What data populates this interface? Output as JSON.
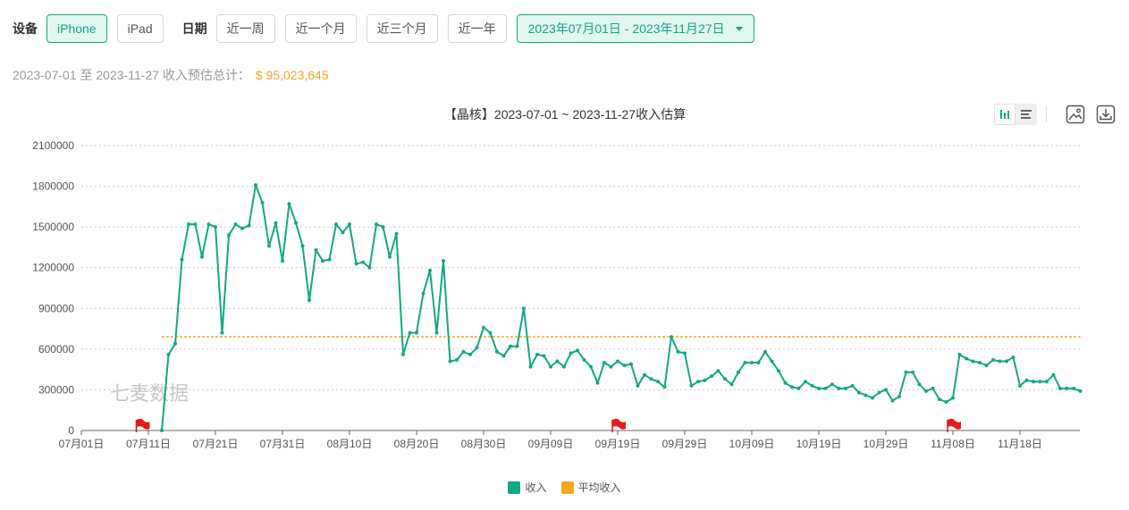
{
  "filters": {
    "device_label": "设备",
    "device_options": [
      {
        "label": "iPhone",
        "active": true
      },
      {
        "label": "iPad",
        "active": false
      }
    ],
    "date_label": "日期",
    "date_options": [
      "近一周",
      "近一个月",
      "近三个月",
      "近一年"
    ],
    "date_range": "2023年07月01日 - 2023年11月27日"
  },
  "summary": {
    "text": "2023-07-01 至 2023-11-27 收入预估总计：",
    "total": "$ 95,023,645"
  },
  "tools": {
    "icons": [
      "bar-chart-icon",
      "list-icon",
      "image-icon",
      "download-icon"
    ]
  },
  "colors": {
    "accent": "#13a884",
    "revenue": "#13a884",
    "average": "#f5a623",
    "marker": "#e11d1d"
  },
  "chart_data": {
    "type": "line",
    "title": "【晶核】2023-07-01 ~ 2023-11-27收入估算",
    "watermark": "七麦数据",
    "x_start": "2023-07-01",
    "x_ticks": [
      "07月01日",
      "07月11日",
      "07月21日",
      "07月31日",
      "08月10日",
      "08月20日",
      "08月30日",
      "09月09日",
      "09月19日",
      "09月29日",
      "10月09日",
      "10月19日",
      "10月29日",
      "11月08日",
      "11月18日"
    ],
    "yticks": [
      0,
      300000,
      600000,
      900000,
      1200000,
      1500000,
      1800000,
      2100000
    ],
    "ylim": [
      0,
      2100000
    ],
    "grid": true,
    "legend_position": "bottom",
    "event_flags": [
      "2023-07-10",
      "2023-09-19",
      "2023-11-08"
    ],
    "series": [
      {
        "name": "收入",
        "start_date": "2023-07-13",
        "values": [
          0,
          560000,
          640000,
          1260000,
          1520000,
          1520000,
          1280000,
          1520000,
          1500000,
          720000,
          1440000,
          1520000,
          1490000,
          1510000,
          1810000,
          1680000,
          1360000,
          1530000,
          1250000,
          1670000,
          1530000,
          1360000,
          960000,
          1330000,
          1250000,
          1260000,
          1520000,
          1460000,
          1520000,
          1230000,
          1240000,
          1200000,
          1520000,
          1500000,
          1280000,
          1450000,
          560000,
          720000,
          720000,
          1010000,
          1180000,
          720000,
          1250000,
          510000,
          520000,
          580000,
          560000,
          610000,
          760000,
          720000,
          580000,
          550000,
          620000,
          620000,
          900000,
          470000,
          560000,
          550000,
          470000,
          510000,
          470000,
          570000,
          590000,
          520000,
          470000,
          350000,
          500000,
          470000,
          510000,
          480000,
          490000,
          330000,
          410000,
          380000,
          360000,
          320000,
          690000,
          580000,
          570000,
          330000,
          360000,
          370000,
          400000,
          440000,
          380000,
          340000,
          430000,
          500000,
          500000,
          500000,
          580000,
          510000,
          440000,
          350000,
          320000,
          310000,
          360000,
          330000,
          310000,
          310000,
          340000,
          310000,
          310000,
          330000,
          280000,
          260000,
          240000,
          280000,
          300000,
          220000,
          250000,
          430000,
          430000,
          340000,
          290000,
          310000,
          230000,
          210000,
          240000,
          560000,
          530000,
          510000,
          500000,
          480000,
          520000,
          510000,
          510000,
          540000,
          330000,
          370000,
          360000,
          360000,
          360000,
          410000,
          310000,
          310000,
          310000,
          290000
        ]
      },
      {
        "name": "平均收入",
        "start_date": "2023-07-13",
        "end_date": "2023-11-27",
        "constant_value": 690000
      }
    ]
  },
  "legend": [
    "收入",
    "平均收入"
  ]
}
